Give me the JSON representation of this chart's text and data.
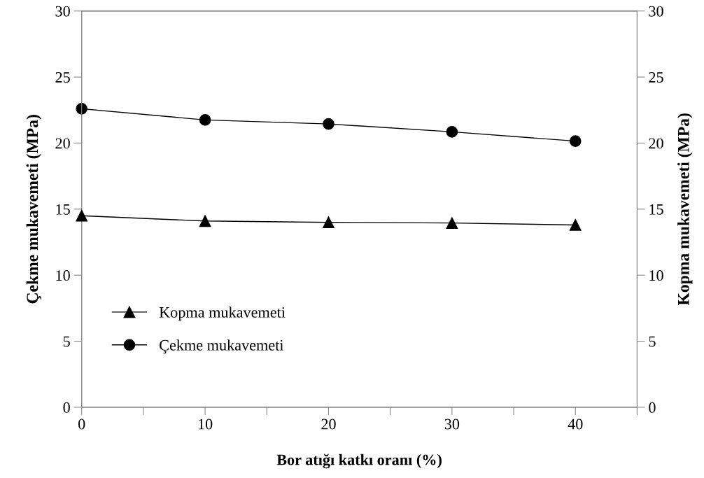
{
  "chart_data": {
    "type": "line",
    "xlabel": "Bor atığı katkı oranı (%)",
    "ylabel": "Çekme mukavemeti (MPa)",
    "y2label": "Kopma mukavemeti (MPa)",
    "x": [
      0,
      10,
      20,
      30,
      40
    ],
    "series": [
      {
        "name": "Kopma mukavemeti",
        "color": "#000000",
        "marker": "triangle",
        "axis": "y2",
        "values": [
          14.5,
          14.1,
          14.0,
          13.95,
          13.8
        ]
      },
      {
        "name": "Çekme mukavemeti",
        "color": "#000000",
        "marker": "circle",
        "values": [
          22.6,
          21.75,
          21.45,
          20.85,
          20.15
        ]
      }
    ],
    "xlim": [
      0,
      45
    ],
    "xticks": [
      0,
      {
        "value": 5,
        "label": null
      },
      10,
      {
        "value": 15,
        "label": null
      },
      20,
      {
        "value": 25,
        "label": null
      },
      30,
      {
        "value": 35,
        "label": null
      },
      40,
      {
        "value": 45,
        "label": null
      }
    ],
    "ylim": [
      0,
      30
    ],
    "yticks": [
      0,
      5,
      10,
      15,
      20,
      25,
      30
    ],
    "y2lim": [
      0,
      30
    ],
    "y2ticks": [
      0,
      5,
      10,
      15,
      20,
      25,
      30
    ],
    "grid": false,
    "legend": "bottom left",
    "line_style": "solid"
  }
}
